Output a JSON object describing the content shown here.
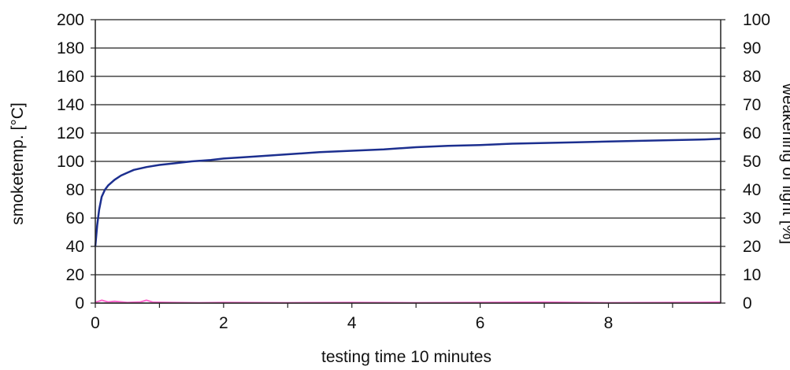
{
  "chart_data": {
    "type": "line",
    "xlabel": "testing time 10 minutes",
    "ylabel": "smoketemp. [°C]",
    "y2label": "weakening of light [%]",
    "xlim": [
      0,
      9.75
    ],
    "ylim": [
      0,
      200
    ],
    "y2lim": [
      0,
      100
    ],
    "x_ticks": [
      0,
      2,
      4,
      6,
      8
    ],
    "y_ticks": [
      0,
      20,
      40,
      60,
      80,
      100,
      120,
      140,
      160,
      180,
      200
    ],
    "y2_ticks": [
      0,
      10,
      20,
      30,
      40,
      50,
      60,
      70,
      80,
      90,
      100
    ],
    "grid": "horizontal",
    "legend": "none",
    "colors": {
      "temperature": "#1c2f8f",
      "light": "#ff66cc",
      "y2_label_color": "#ff66cc"
    },
    "series": [
      {
        "axis": "left",
        "x": [
          0,
          0.03,
          0.06,
          0.1,
          0.15,
          0.2,
          0.3,
          0.4,
          0.5,
          0.6,
          0.8,
          1.0,
          1.2,
          1.5,
          1.8,
          2.0,
          2.5,
          3.0,
          3.5,
          4.0,
          4.5,
          5.0,
          5.5,
          6.0,
          6.5,
          7.0,
          7.5,
          8.0,
          8.5,
          9.0,
          9.5,
          9.75
        ],
        "y": [
          40,
          55,
          66,
          75,
          80,
          83,
          87,
          90,
          92,
          94,
          96,
          97.5,
          98.5,
          100,
          101,
          102,
          103.5,
          105,
          106.5,
          107.5,
          108.5,
          110,
          111,
          111.5,
          112.5,
          113,
          113.5,
          114,
          114.5,
          115,
          115.5,
          116
        ]
      },
      {
        "axis": "right",
        "x": [
          0,
          0.05,
          0.1,
          0.2,
          0.3,
          0.5,
          0.7,
          0.8,
          0.9,
          1.2,
          1.6,
          2.0,
          3.0,
          4.0,
          5.0,
          6.0,
          7.0,
          8.0,
          9.0,
          9.75
        ],
        "y": [
          0.3,
          0.6,
          1.0,
          0.4,
          0.6,
          0.2,
          0.4,
          1.0,
          0.3,
          0.2,
          0.1,
          0.2,
          0.1,
          0.2,
          0.1,
          0.2,
          0.3,
          0.1,
          0.2,
          0.3
        ]
      }
    ]
  }
}
